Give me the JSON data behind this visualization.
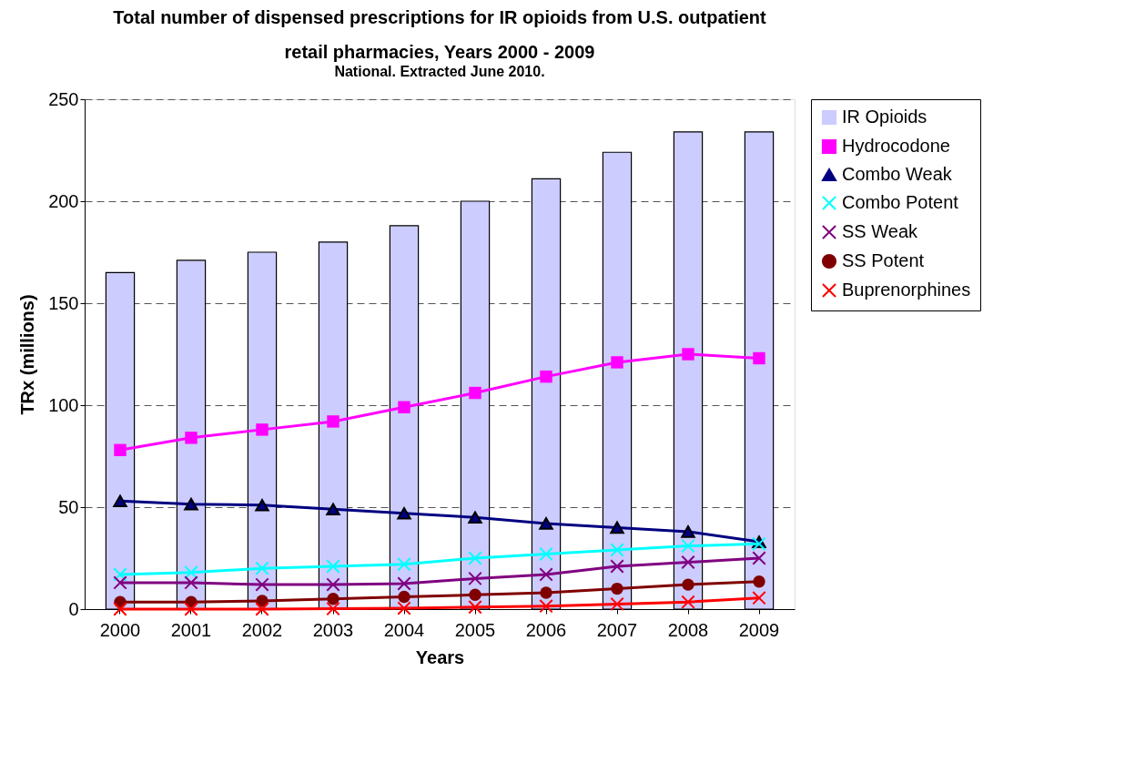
{
  "chart_data": {
    "type": "bar",
    "title": "Total number of dispensed prescriptions for IR opioids from U.S. outpatient retail pharmacies, Years 2000 - 2009",
    "subtitle": "National.  Extracted June 2010.",
    "xlabel": "Years",
    "ylabel": "TRx (millions)",
    "categories": [
      "2000",
      "2001",
      "2002",
      "2003",
      "2004",
      "2005",
      "2006",
      "2007",
      "2008",
      "2009"
    ],
    "series": [
      {
        "name": "IR Opioids",
        "color": "#ccccff",
        "values": [
          165,
          171,
          175,
          180,
          188,
          200,
          211,
          224,
          234,
          234
        ]
      },
      {
        "name": "Hydrocodone",
        "type": "line",
        "marker": "square",
        "color": "#ff00ff",
        "values": [
          78,
          84,
          88,
          92,
          99,
          106,
          114,
          121,
          125,
          123
        ]
      },
      {
        "name": "Combo Weak",
        "type": "line",
        "marker": "triangle",
        "color": "#000080",
        "values": [
          53,
          51.5,
          51,
          49,
          47,
          45,
          42,
          40,
          38,
          33
        ]
      },
      {
        "name": "Combo Potent",
        "type": "line",
        "marker": "cross",
        "color": "#00ffff",
        "values": [
          17,
          18,
          20,
          21,
          22,
          25,
          27,
          29,
          31,
          32
        ]
      },
      {
        "name": "SS Weak",
        "type": "line",
        "marker": "cross",
        "color": "#800080",
        "values": [
          13,
          13,
          12,
          12,
          12.5,
          15,
          17,
          21,
          23,
          25
        ]
      },
      {
        "name": "SS Potent",
        "type": "line",
        "marker": "circle",
        "color": "#800000",
        "values": [
          3.5,
          3.5,
          4,
          5,
          6,
          7,
          8,
          10,
          12,
          13.5
        ]
      },
      {
        "name": "Buprenorphines",
        "type": "line",
        "marker": "cross",
        "color": "#ff0000",
        "values": [
          0,
          0,
          0,
          0.2,
          0.4,
          1,
          1.5,
          2.5,
          3.5,
          5.5
        ]
      }
    ],
    "ylim": [
      0,
      250
    ],
    "yticks": [
      0,
      50,
      100,
      150,
      200,
      250
    ],
    "grid": "y",
    "legend": "right",
    "line_style": "solid"
  }
}
